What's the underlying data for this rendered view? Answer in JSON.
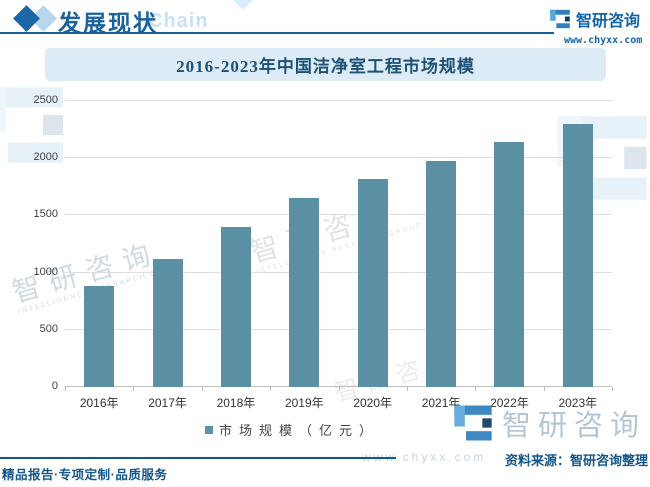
{
  "header": {
    "section_title": "发展现状",
    "watermark_word": "Chain",
    "brand_name": "智研咨询",
    "website": "www.chyxx.com"
  },
  "title_bar": {
    "text": "2016-2023年中国洁净室工程市场规模"
  },
  "chart_data": {
    "type": "bar",
    "title": "2016-2023年中国洁净室工程市场规模",
    "categories": [
      "2016年",
      "2017年",
      "2018年",
      "2019年",
      "2020年",
      "2021年",
      "2022年",
      "2023年"
    ],
    "series": [
      {
        "name": "市场规模（亿元）",
        "values": [
          880,
          1115,
          1395,
          1655,
          1820,
          1980,
          2140,
          2300
        ]
      }
    ],
    "ylabel": "",
    "xlabel": "",
    "unit": "亿元",
    "ylim": [
      0,
      2500
    ],
    "yticks": [
      0,
      500,
      1000,
      1500,
      2000,
      2500
    ],
    "grid": true,
    "legend_position": "bottom",
    "bar_color": "#5b8fa3"
  },
  "legend": {
    "label": "市场规模（亿元）"
  },
  "watermarks": {
    "brand": "智研咨询",
    "subtitle": "INTELLIGENCE RESEARCH GROUP",
    "website": "www.chyxx.com"
  },
  "footer": {
    "slogan": "精品报告·专项定制·品质服务",
    "source_text": "资料来源：智研咨询整理"
  },
  "colors": {
    "accent_blue": "#15568a",
    "brand_blue": "#1464a8",
    "bar_teal": "#5b8fa3",
    "title_bar_bg": "#dcebf6",
    "gridline": "#dedede"
  }
}
